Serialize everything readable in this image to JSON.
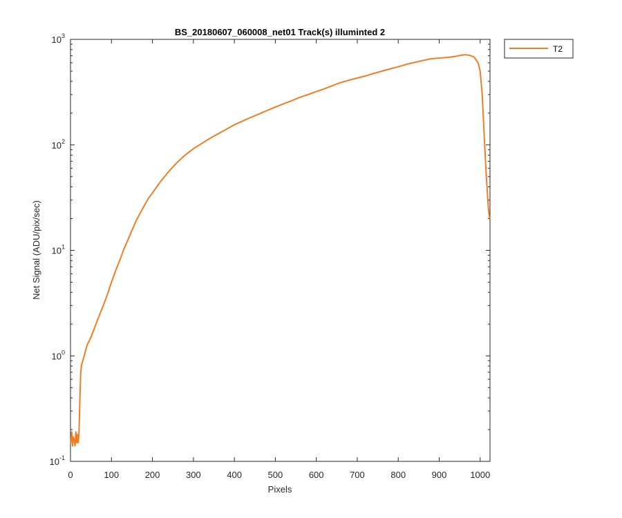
{
  "chart_data": {
    "type": "line",
    "title": "BS_20180607_060008_net01  Track(s) illuminted 2",
    "xlabel": "Pixels",
    "ylabel": "Net Signal (ADU/pix/sec)",
    "xlim": [
      0,
      1024
    ],
    "ylim": [
      0.1,
      1000
    ],
    "yscale": "log",
    "grid": false,
    "legend_position": "outside-top-right",
    "x_ticks": [
      0,
      100,
      200,
      300,
      400,
      500,
      600,
      700,
      800,
      900,
      1000
    ],
    "x_tick_labels": [
      "0",
      "100",
      "200",
      "300",
      "400",
      "500",
      "600",
      "700",
      "800",
      "900",
      "1000"
    ],
    "y_ticks": [
      0.1,
      1,
      10,
      100,
      1000
    ],
    "y_tick_labels": [
      {
        "base": "10",
        "exp": "-1"
      },
      {
        "base": "10",
        "exp": "0"
      },
      {
        "base": "10",
        "exp": "1"
      },
      {
        "base": "10",
        "exp": "2"
      },
      {
        "base": "10",
        "exp": "3"
      }
    ],
    "series": [
      {
        "name": "T2",
        "color": "#f27c21",
        "x": [
          1,
          3,
          5,
          7,
          9,
          11,
          13,
          15,
          17,
          19,
          21,
          23,
          25,
          27,
          30,
          35,
          40,
          50,
          60,
          70,
          80,
          90,
          100,
          110,
          120,
          130,
          140,
          150,
          160,
          170,
          180,
          190,
          200,
          220,
          240,
          260,
          280,
          300,
          320,
          340,
          360,
          380,
          400,
          420,
          440,
          460,
          480,
          500,
          520,
          540,
          560,
          580,
          600,
          620,
          640,
          660,
          680,
          700,
          720,
          740,
          760,
          780,
          800,
          820,
          840,
          860,
          880,
          900,
          920,
          940,
          955,
          965,
          975,
          985,
          995,
          1000,
          1005,
          1010,
          1015,
          1020,
          1023
        ],
        "y": [
          0.15,
          0.19,
          0.14,
          0.17,
          0.16,
          0.14,
          0.19,
          0.15,
          0.18,
          0.15,
          0.2,
          0.4,
          0.7,
          0.82,
          0.9,
          1.05,
          1.25,
          1.5,
          1.9,
          2.4,
          3.0,
          3.8,
          5.0,
          6.4,
          8.0,
          10.2,
          12.5,
          15.5,
          19.0,
          22.5,
          26.5,
          31.0,
          35.0,
          45.0,
          56.0,
          68.0,
          80.0,
          92.0,
          103.0,
          115.0,
          127.0,
          140.0,
          155.0,
          168.0,
          182.0,
          196.0,
          212.0,
          228.0,
          245.0,
          262.0,
          282.0,
          300.0,
          320.0,
          340.0,
          365.0,
          390.0,
          410.0,
          430.0,
          450.0,
          475.0,
          500.0,
          525.0,
          550.0,
          580.0,
          605.0,
          630.0,
          655.0,
          665.0,
          675.0,
          690.0,
          710.0,
          715.0,
          705.0,
          680.0,
          600.0,
          500.0,
          300.0,
          120.0,
          50.0,
          25.0,
          20.0
        ]
      }
    ]
  }
}
